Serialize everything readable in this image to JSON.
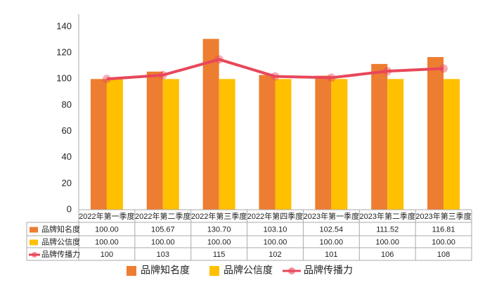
{
  "chart_data": {
    "type": "bar-line-table",
    "categories": [
      "2022年第一季度",
      "2022年第二季度",
      "2022年第三季度",
      "2022年第四季度",
      "2023年第一季度",
      "2023年第二季度",
      "2023年第三季度"
    ],
    "series": [
      {
        "name": "品牌知名度",
        "type": "bar",
        "color": "#ED7D31",
        "values": [
          100,
          105.67,
          130.7,
          103.1,
          102.54,
          111.52,
          116.81
        ],
        "value_labels": [
          "100.00",
          "105.67",
          "130.70",
          "103.10",
          "102.54",
          "111.52",
          "116.81"
        ]
      },
      {
        "name": "品牌公信度",
        "type": "bar",
        "color": "#FFC000",
        "values": [
          100,
          100,
          100,
          100,
          100,
          100,
          100
        ],
        "value_labels": [
          "100.00",
          "100.00",
          "100.00",
          "100.00",
          "100.00",
          "100.00",
          "100.00"
        ]
      },
      {
        "name": "品牌传播力",
        "type": "line",
        "color": "#E8475A",
        "values": [
          100,
          103,
          115,
          102,
          101,
          106,
          108
        ]
      }
    ],
    "ylim": [
      0,
      140
    ],
    "yticks": [
      0,
      20,
      40,
      60,
      80,
      100,
      120,
      140
    ],
    "grid": false,
    "legend": "bottom"
  }
}
